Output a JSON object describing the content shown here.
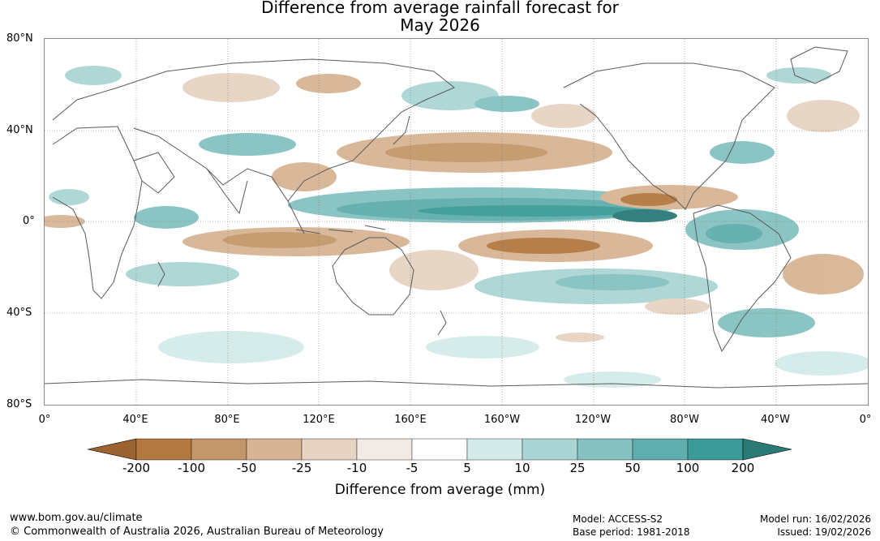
{
  "title_line1": "Difference from average rainfall forecast for",
  "title_line2": "May 2026",
  "lat_labels": [
    "80°N",
    "40°N",
    "0°",
    "40°S",
    "80°S"
  ],
  "lon_labels": [
    "0°",
    "40°E",
    "80°E",
    "120°E",
    "160°E",
    "160°W",
    "120°W",
    "80°W",
    "40°W",
    "0°"
  ],
  "colorbar": {
    "colors": [
      "#9a6331",
      "#b3783f",
      "#c4976a",
      "#d7b594",
      "#e6d3c2",
      "#f2ebe5",
      "#ffffff",
      "#d4ebea",
      "#aad5d4",
      "#84c1c0",
      "#5fadad",
      "#3c9a98",
      "#2a7a78"
    ],
    "labels": [
      "-200",
      "-100",
      "-50",
      "-25",
      "-10",
      "-5",
      "5",
      "10",
      "25",
      "50",
      "100",
      "200"
    ],
    "title": "Difference from average (mm)"
  },
  "footer": {
    "website": "www.bom.gov.au/climate",
    "copyright": "© Commonwealth of Australia 2026, Australian Bureau of Meteorology",
    "model": "Model: ACCESS-S2",
    "base_period": "Base period: 1981-2018",
    "model_run": "Model run: 16/02/2026",
    "issued": "Issued: 19/02/2026"
  }
}
